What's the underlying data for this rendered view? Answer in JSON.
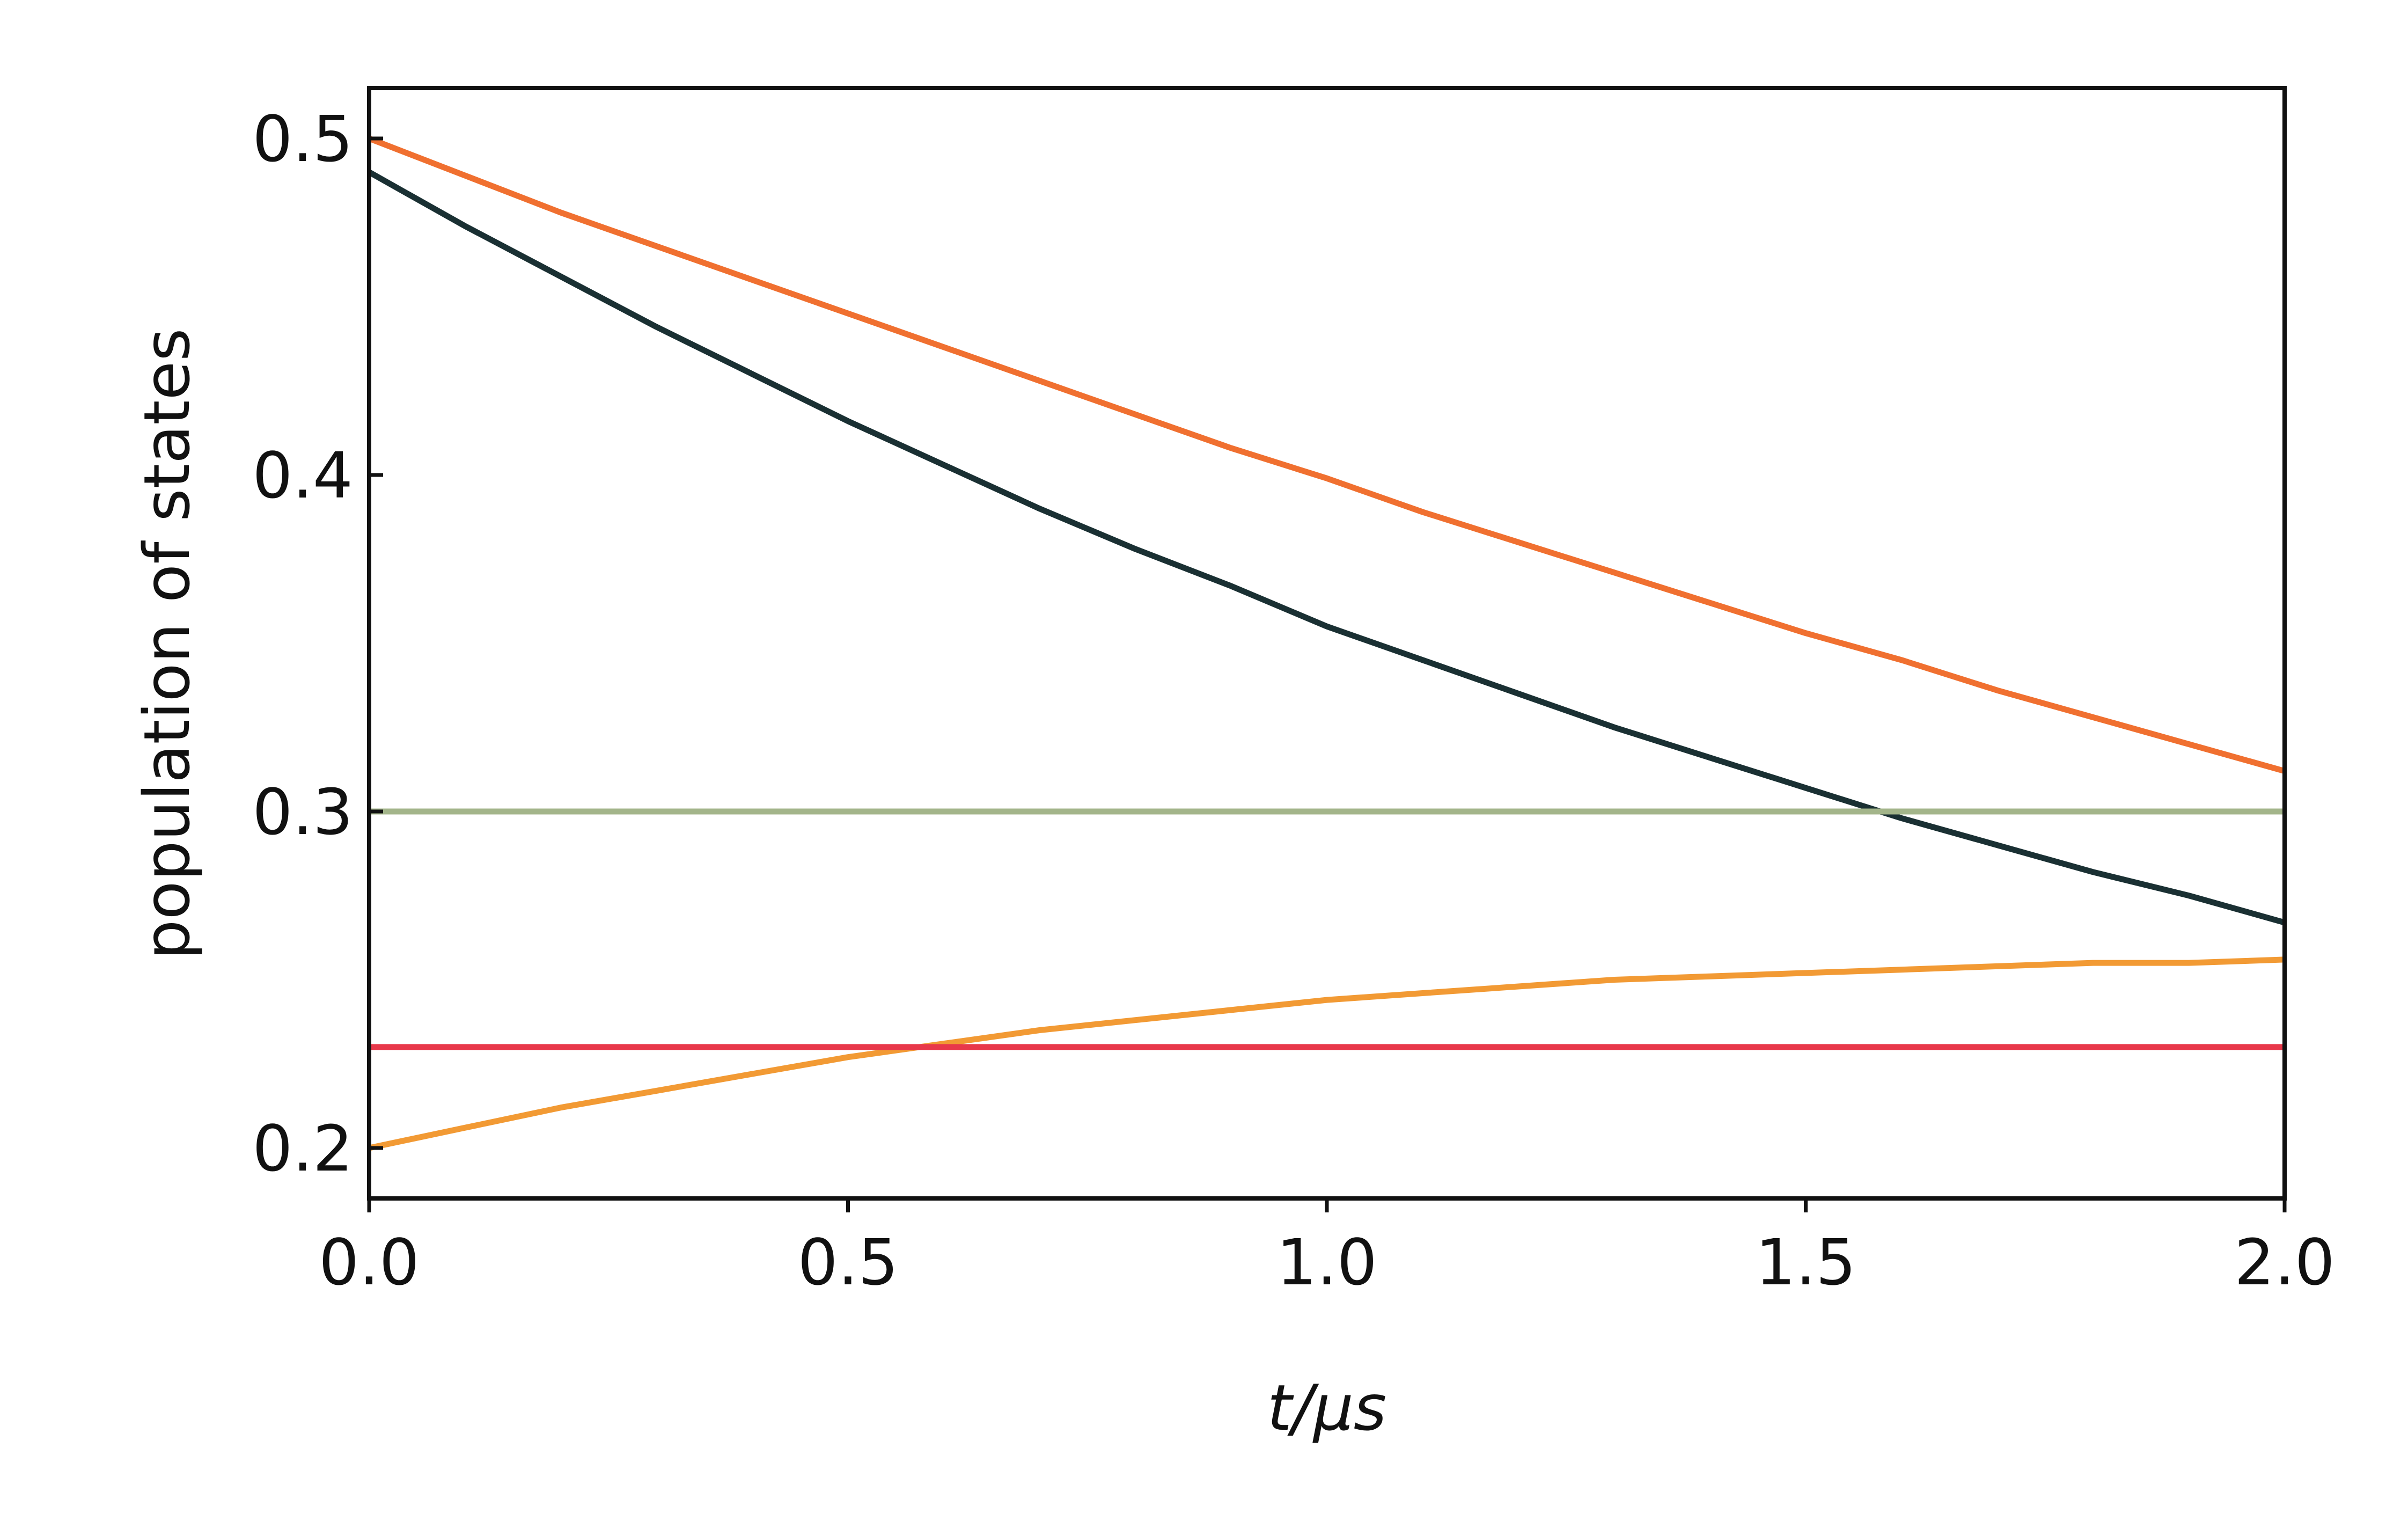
{
  "chart_data": {
    "type": "line",
    "title": "",
    "xlabel": "t/μs",
    "ylabel": "population of states",
    "xlim": [
      0.0,
      2.0
    ],
    "ylim": [
      0.185,
      0.515
    ],
    "grid": false,
    "legend": "none",
    "x_ticks": [
      "0.0",
      "0.5",
      "1.0",
      "1.5",
      "2.0"
    ],
    "y_ticks": [
      "0.2",
      "0.3",
      "0.4",
      "0.5"
    ],
    "x": [
      0.0,
      0.1,
      0.2,
      0.3,
      0.4,
      0.5,
      0.6,
      0.7,
      0.8,
      0.9,
      1.0,
      1.1,
      1.2,
      1.3,
      1.4,
      1.5,
      1.6,
      1.7,
      1.8,
      1.9,
      2.0
    ],
    "series": [
      {
        "color": "#f07030",
        "values": [
          0.5,
          0.489,
          0.478,
          0.468,
          0.458,
          0.448,
          0.438,
          0.428,
          0.418,
          0.408,
          0.399,
          0.389,
          0.38,
          0.371,
          0.362,
          0.353,
          0.345,
          0.336,
          0.328,
          0.32,
          0.312
        ]
      },
      {
        "color": "#1a3033",
        "values": [
          0.49,
          0.474,
          0.459,
          0.444,
          0.43,
          0.416,
          0.403,
          0.39,
          0.378,
          0.367,
          0.355,
          0.345,
          0.335,
          0.325,
          0.316,
          0.307,
          0.298,
          0.29,
          0.282,
          0.275,
          0.267
        ]
      },
      {
        "color": "#a3b58a",
        "values": [
          0.3,
          0.3,
          0.3,
          0.3,
          0.3,
          0.3,
          0.3,
          0.3,
          0.3,
          0.3,
          0.3,
          0.3,
          0.3,
          0.3,
          0.3,
          0.3,
          0.3,
          0.3,
          0.3,
          0.3,
          0.3
        ]
      },
      {
        "color": "#f29a34",
        "values": [
          0.2,
          0.206,
          0.212,
          0.217,
          0.222,
          0.227,
          0.231,
          0.235,
          0.238,
          0.241,
          0.244,
          0.246,
          0.248,
          0.25,
          0.251,
          0.252,
          0.253,
          0.254,
          0.255,
          0.255,
          0.256
        ]
      },
      {
        "color": "#e8384a",
        "values": [
          0.23,
          0.23,
          0.23,
          0.23,
          0.23,
          0.23,
          0.23,
          0.23,
          0.23,
          0.23,
          0.23,
          0.23,
          0.23,
          0.23,
          0.23,
          0.23,
          0.23,
          0.23,
          0.23,
          0.23,
          0.23
        ]
      }
    ]
  }
}
